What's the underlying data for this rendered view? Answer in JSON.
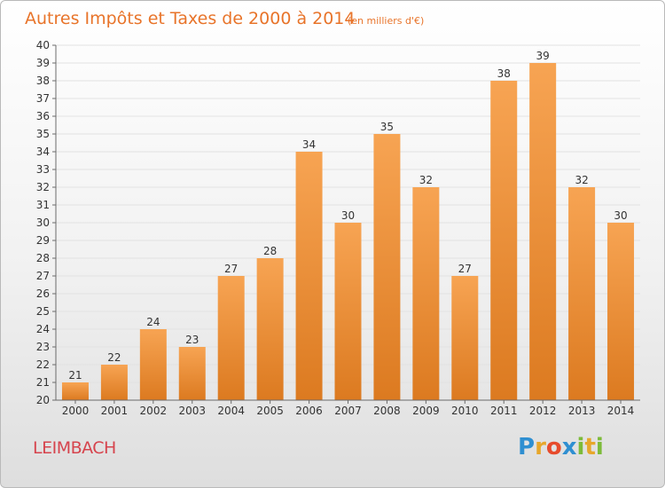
{
  "title": "Autres Impôts et Taxes de 2000 à 2014",
  "unit": "(en milliers d'€)",
  "place": "LEIMBACH",
  "logo": {
    "letters": [
      "P",
      "r",
      "o",
      "x",
      "i",
      "t",
      "i"
    ],
    "colors": [
      "#2f8fd1",
      "#e7a72b",
      "#e74b2c",
      "#2f8fd1",
      "#7dbb3a",
      "#e7a72b",
      "#7dbb3a"
    ]
  },
  "colors": {
    "bar_light": "#f7a453",
    "bar_dark": "#de7b22",
    "title": "#e8742a",
    "place": "#d6444d"
  },
  "chart_data": {
    "type": "bar",
    "title": "Autres Impôts et Taxes de 2000 à 2014",
    "subtitle": "(en milliers d'€)",
    "categories": [
      "2000",
      "2001",
      "2002",
      "2003",
      "2004",
      "2005",
      "2006",
      "2007",
      "2008",
      "2009",
      "2010",
      "2011",
      "2012",
      "2013",
      "2014"
    ],
    "values": [
      21,
      22,
      24,
      23,
      27,
      28,
      34,
      30,
      35,
      32,
      27,
      38,
      39,
      32,
      30
    ],
    "ylim": [
      20,
      40
    ],
    "yticks": [
      20,
      21,
      22,
      23,
      24,
      25,
      26,
      27,
      28,
      29,
      30,
      31,
      32,
      33,
      34,
      35,
      36,
      37,
      38,
      39,
      40
    ],
    "grid": true,
    "data_labels": true
  }
}
